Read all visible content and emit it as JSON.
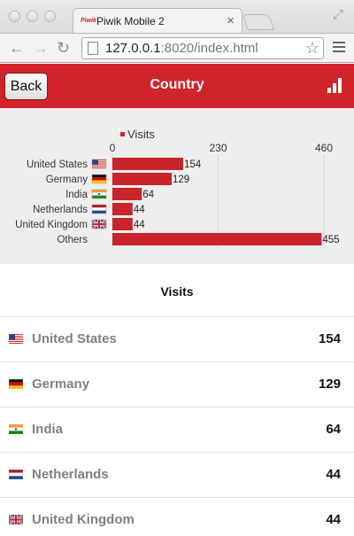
{
  "browser": {
    "tab_title": "Piwik Mobile 2",
    "favicon_text": "Piwik",
    "url_host": "127.0.0.1",
    "url_rest": ":8020/index.html"
  },
  "header": {
    "back_label": "Back",
    "title": "Country"
  },
  "colors": {
    "accent": "#d0232a",
    "bar": "#c9242b"
  },
  "chart_data": {
    "type": "bar",
    "orientation": "horizontal",
    "categories": [
      "United States",
      "Germany",
      "India",
      "Netherlands",
      "United Kingdom",
      "Others"
    ],
    "series": [
      {
        "name": "Visits",
        "values": [
          154,
          129,
          64,
          44,
          44,
          455
        ]
      }
    ],
    "xlim": [
      0,
      460
    ],
    "xticks": [
      0,
      230,
      460
    ],
    "legend": "top",
    "grid": true
  },
  "table": {
    "column_header": "Visits",
    "rows": [
      {
        "name": "United States",
        "value": "154",
        "flag": "us-flag-icon"
      },
      {
        "name": "Germany",
        "value": "129",
        "flag": "de-flag-icon"
      },
      {
        "name": "India",
        "value": "64",
        "flag": "in-flag-icon"
      },
      {
        "name": "Netherlands",
        "value": "44",
        "flag": "nl-flag-icon"
      },
      {
        "name": "United Kingdom",
        "value": "44",
        "flag": "gb-flag-icon"
      }
    ]
  }
}
